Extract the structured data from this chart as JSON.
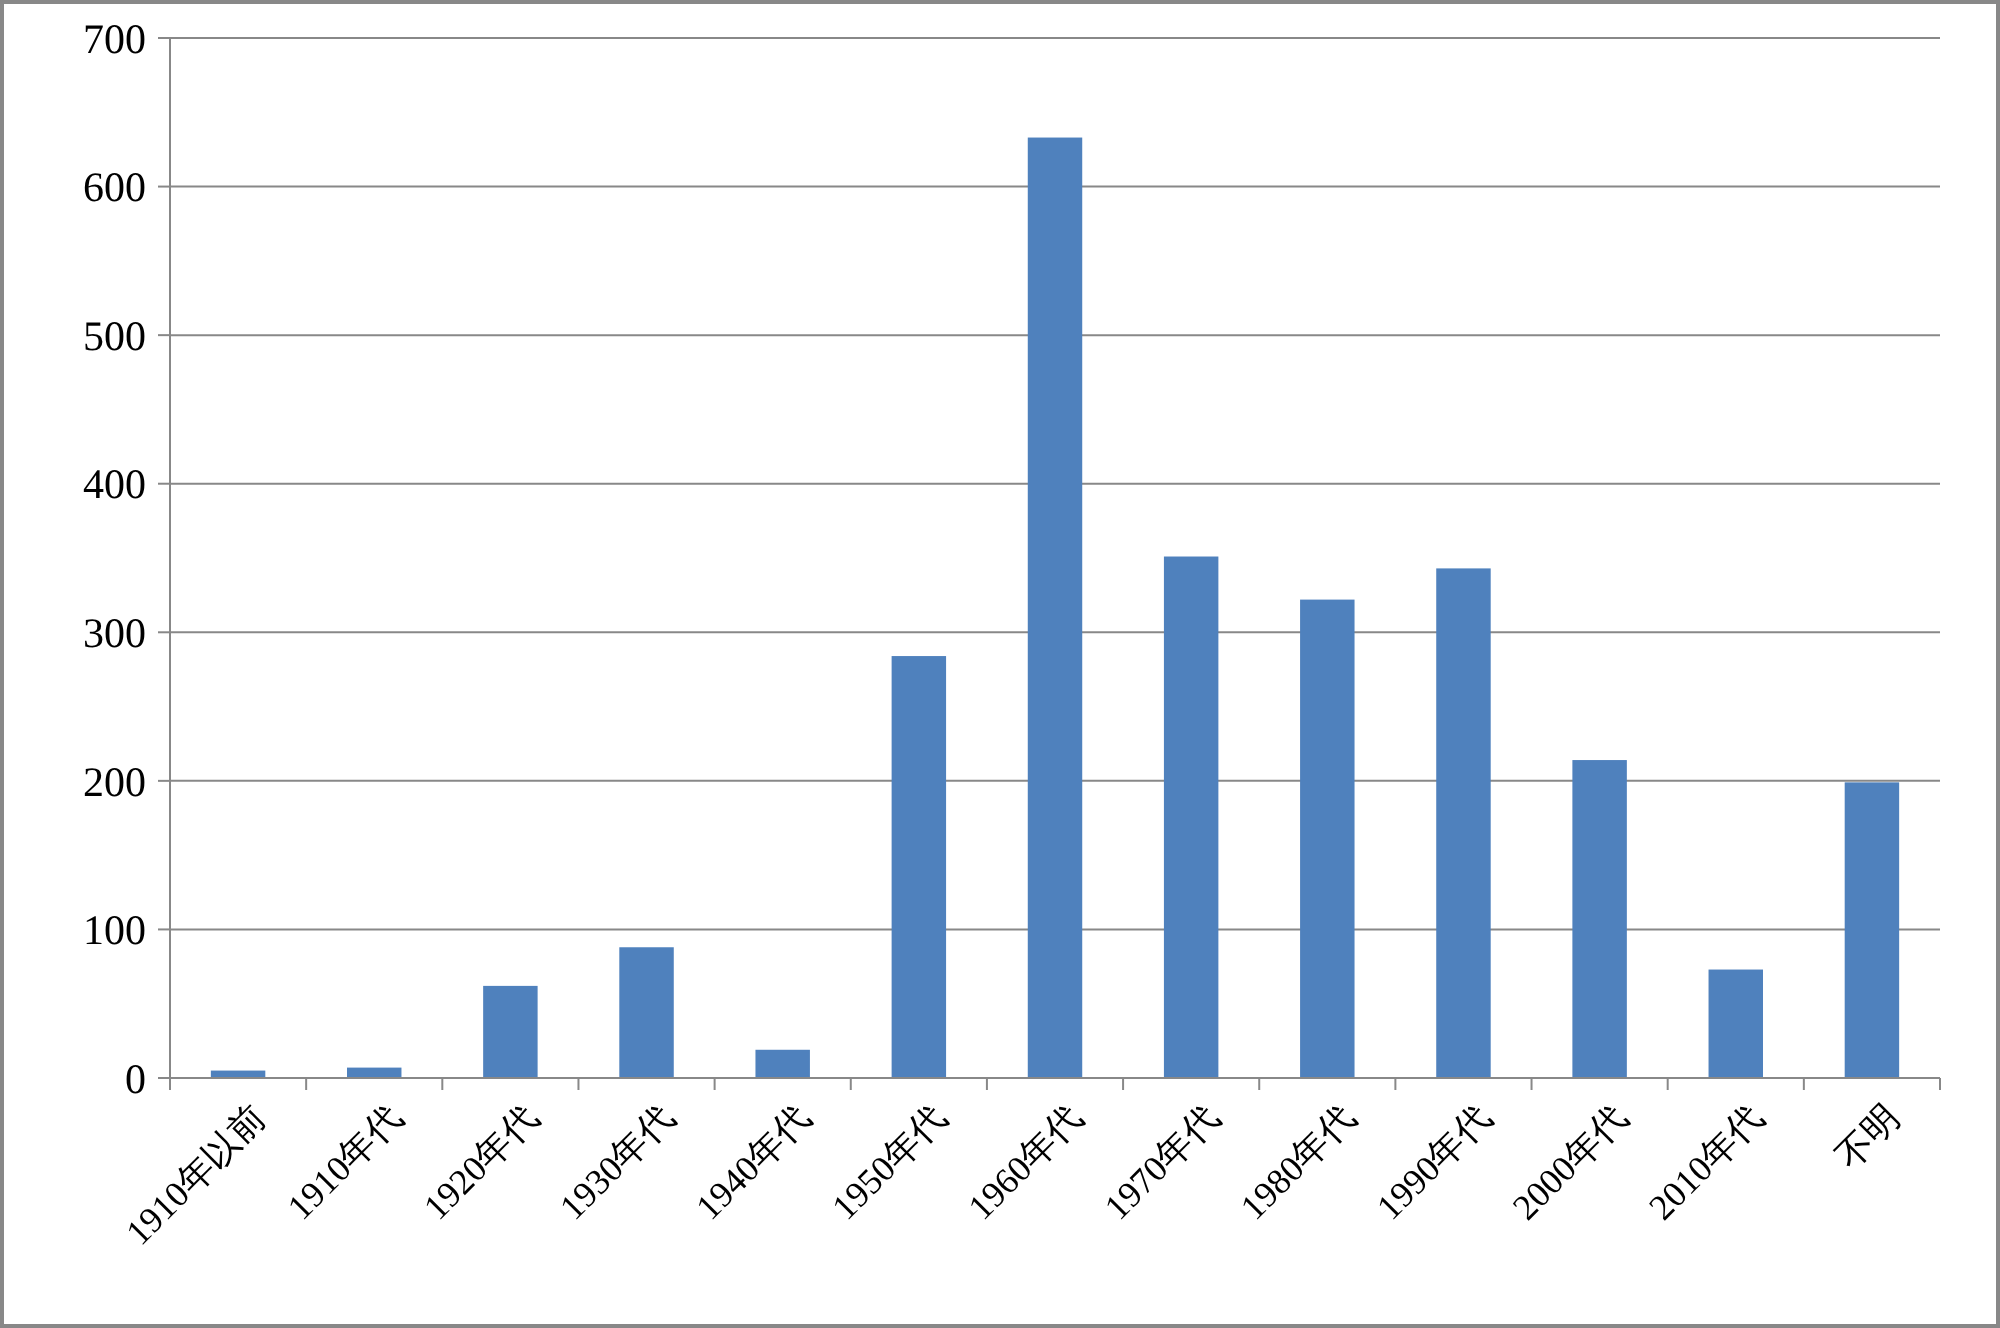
{
  "chart_data": {
    "type": "bar",
    "categories": [
      "1910年以前",
      "1910年代",
      "1920年代",
      "1930年代",
      "1940年代",
      "1950年代",
      "1960年代",
      "1970年代",
      "1980年代",
      "1990年代",
      "2000年代",
      "2010年代",
      "不明"
    ],
    "values": [
      5,
      7,
      62,
      88,
      19,
      284,
      633,
      351,
      322,
      343,
      214,
      73,
      199
    ],
    "color": "#4f81bd",
    "ylim": [
      0,
      700
    ],
    "yticks": [
      0,
      100,
      200,
      300,
      400,
      500,
      600,
      700
    ],
    "grid": "y"
  }
}
